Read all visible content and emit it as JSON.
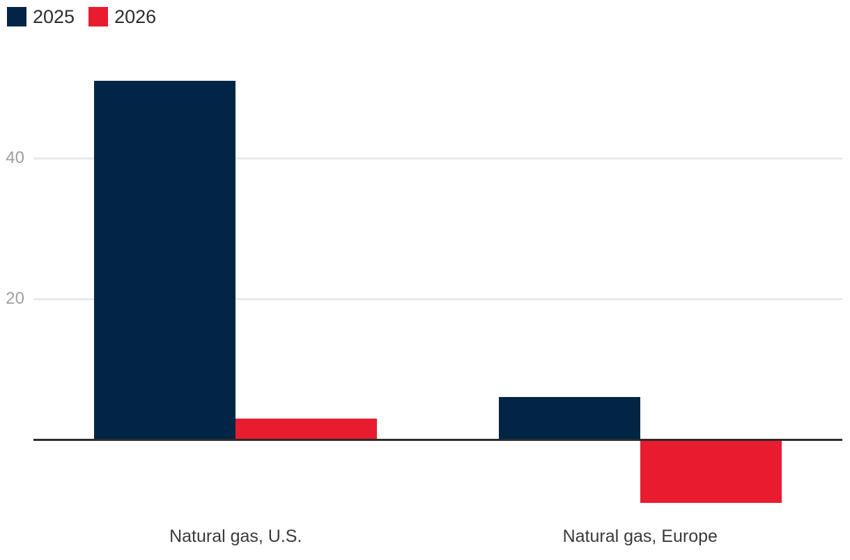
{
  "chart_data": {
    "type": "bar",
    "categories": [
      "Natural gas, U.S.",
      "Natural gas, Europe"
    ],
    "series": [
      {
        "name": "2025",
        "color": "#032545",
        "values": [
          51,
          6
        ]
      },
      {
        "name": "2026",
        "color": "#e81c2e",
        "values": [
          3,
          -9
        ]
      }
    ],
    "yticks": [
      40,
      20
    ],
    "title": "",
    "xlabel": "",
    "ylabel": "",
    "ylim": [
      -12,
      55
    ],
    "grid": true,
    "legend_position": "top-left",
    "baseline": 0
  },
  "colors": {
    "background": "#ffffff",
    "gridline": "#e9e9e9",
    "axis_line": "#2b2b2b",
    "tick_text": "#9e9e9e",
    "category_text": "#3a3a3a",
    "legend_text": "#2d2d2d"
  }
}
